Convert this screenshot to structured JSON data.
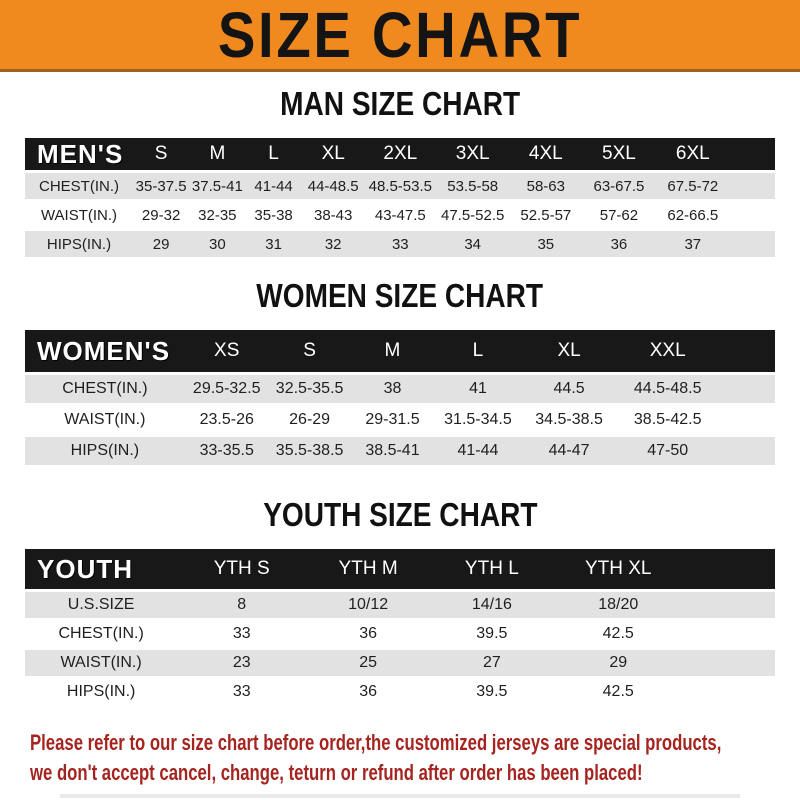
{
  "banner": {
    "title": "SIZE CHART",
    "bg_color": "#F0891E",
    "text_color": "#141414"
  },
  "sections": [
    {
      "heading": "MAN SIZE CHART",
      "label": "MEN'S",
      "columns": [
        "S",
        "M",
        "L",
        "XL",
        "2XL",
        "3XL",
        "4XL",
        "5XL",
        "6XL"
      ],
      "rows": [
        {
          "label": "CHEST(IN.)",
          "values": [
            "35-37.5",
            "37.5-41",
            "41-44",
            "44-48.5",
            "48.5-53.5",
            "53.5-58",
            "58-63",
            "63-67.5",
            "67.5-72"
          ]
        },
        {
          "label": "WAIST(IN.)",
          "values": [
            "29-32",
            "32-35",
            "35-38",
            "38-43",
            "43-47.5",
            "47.5-52.5",
            "52.5-57",
            "57-62",
            "62-66.5"
          ]
        },
        {
          "label": "HIPS(IN.)",
          "values": [
            "29",
            "30",
            "31",
            "32",
            "33",
            "34",
            "35",
            "36",
            "37"
          ]
        }
      ]
    },
    {
      "heading": "WOMEN SIZE CHART",
      "label": "WOMEN'S",
      "columns": [
        "XS",
        "S",
        "M",
        "L",
        "XL",
        "XXL"
      ],
      "rows": [
        {
          "label": "CHEST(IN.)",
          "values": [
            "29.5-32.5",
            "32.5-35.5",
            "38",
            "41",
            "44.5",
            "44.5-48.5"
          ]
        },
        {
          "label": "WAIST(IN.)",
          "values": [
            "23.5-26",
            "26-29",
            "29-31.5",
            "31.5-34.5",
            "34.5-38.5",
            "38.5-42.5"
          ]
        },
        {
          "label": "HIPS(IN.)",
          "values": [
            "33-35.5",
            "35.5-38.5",
            "38.5-41",
            "41-44",
            "44-47",
            "47-50"
          ]
        }
      ]
    },
    {
      "heading": "YOUTH SIZE CHART",
      "label": "YOUTH",
      "columns": [
        "YTH S",
        "YTH M",
        "YTH L",
        "YTH XL"
      ],
      "rows": [
        {
          "label": "U.S.SIZE",
          "values": [
            "8",
            "10/12",
            "14/16",
            "18/20"
          ]
        },
        {
          "label": "CHEST(IN.)",
          "values": [
            "33",
            "36",
            "39.5",
            "42.5"
          ]
        },
        {
          "label": "WAIST(IN.)",
          "values": [
            "23",
            "25",
            "27",
            "29"
          ]
        },
        {
          "label": "HIPS(IN.)",
          "values": [
            "33",
            "36",
            "39.5",
            "42.5"
          ]
        }
      ]
    }
  ],
  "footer": {
    "line1": "Please refer to our size chart before order,the customized jerseys are special products,",
    "line2": "we don't accept cancel, change, teturn or refund after order has been placed!",
    "text_color": "#A6241F"
  },
  "colors": {
    "header_bar": "#181818",
    "row_stripe": "#E2E2E2",
    "banner_orange": "#F0891E"
  }
}
